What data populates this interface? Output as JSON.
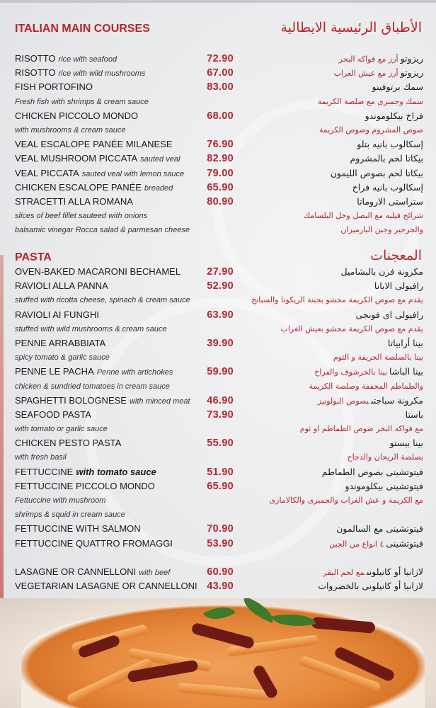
{
  "sections": [
    {
      "title": "ITALIAN MAIN COURSES",
      "title_ar": "الأطباق الرئيسية الايطالية",
      "rows": [
        {
          "en": "RISOTTO",
          "en_desc": "rice with seafood",
          "price": "72.90",
          "ar": "ريزوتو",
          "ar_desc": "أرز مع فواكه البحر"
        },
        {
          "en": "RISOTTO",
          "en_desc": "rice with wild mushrooms",
          "price": "67.00",
          "ar": "ريزوتو",
          "ar_desc": "أرز مع عيش الغراب"
        },
        {
          "en": "FISH PORTOFINO",
          "price": "83.00",
          "ar": "سمك برتوفينو"
        },
        {
          "desc": true,
          "en": "Fresh fish with shrimps & cream sauce",
          "ar": "سمك وجمبرى مع صلصة الكريمة"
        },
        {
          "en": "CHICKEN PICCOLO MONDO",
          "price": "68.00",
          "ar": "فراخ بيكلوموندو"
        },
        {
          "desc": true,
          "en": "with mushrooms & cream sauce",
          "ar": "صوص المشروم وصوص الكريمة"
        },
        {
          "en": "VEAL ESCALOPE PANÉE MILANESE",
          "price": "76.90",
          "ar": "إسكالوب بانيه بتلو"
        },
        {
          "en": "VEAL MUSHROOM PICCATA",
          "en_desc": "sauted veal",
          "price": "82.90",
          "ar": "بيكاتا لحم بالمشروم"
        },
        {
          "en": "VEAL PICCATA",
          "en_desc": "sauted veal with lemon sauce",
          "price": "79.00",
          "ar": "بيكاتا لحم بصوص الليمون"
        },
        {
          "en": "CHICKEN ESCALOPE PANÉE",
          "en_desc": "breaded",
          "price": "65.90",
          "ar": "إسكالوب بانيه فراخ"
        },
        {
          "en": "STRACETTI ALLA ROMANA",
          "price": "80.90",
          "ar": "ستراستى الاروماتا"
        },
        {
          "desc": true,
          "en": "slices of beef fillet sauteed with onions",
          "ar": "شرائح فيليه مع البصل وخل البلسامك"
        },
        {
          "desc": true,
          "en": "balsamic vinegar Rocca salad & parmesan cheese",
          "ar": "والجرجير وجبن البارميزان"
        }
      ]
    },
    {
      "title": "PASTA",
      "title_ar": "المعجنات",
      "rows": [
        {
          "en": "OVEN-BAKED MACARONI BECHAMEL",
          "price": "27.90",
          "ar": "مكرونة فرن بالبشاميل"
        },
        {
          "en": "RAVIOLI ALLA PANNA",
          "price": "52.90",
          "ar": "رافيولى الابانا"
        },
        {
          "desc": true,
          "en": "stuffed with ricotta cheese, spinach & cream sauce",
          "ar": "يقدم مع صوص الكريمة محشو بجبنة الريكوتا والسبانخ"
        },
        {
          "en": "RAVIOLI AI FUNGHI",
          "price": "63.90",
          "ar": "رافيولى اى فونجى"
        },
        {
          "desc": true,
          "en": "stuffed with wild mushrooms & cream sauce",
          "ar": "يقدم مع صوص الكريمة محشو بعيش الغراب"
        },
        {
          "en": "PENNE ARRABBIATA",
          "price": "39.90",
          "ar": "بينا أرابياتا"
        },
        {
          "desc": true,
          "en": "spicy tomato & garlic sauce",
          "ar": "بينا بالصلصة الحريفة و الثوم"
        },
        {
          "en": "PENNE LE PACHA",
          "en_desc": "Penne with artichokes",
          "price": "59.90",
          "ar": "بينا الباشا",
          "ar_desc": "بينا بالخرشوف والفراخ"
        },
        {
          "desc": true,
          "en": "chicken & sundried tomatoes in cream sauce",
          "ar": "والطماطم المجففة وصلصة الكريمة"
        },
        {
          "en": "SPAGHETTI BOLOGNESE",
          "en_desc": "with minced meat",
          "price": "46.90",
          "ar": "مكرونة سباجتى",
          "ar_desc": "بصوص البولونيز"
        },
        {
          "en": "SEAFOOD PASTA",
          "price": "73.90",
          "ar": "باستا"
        },
        {
          "desc": true,
          "en": "with tomato or garlic sauce",
          "ar": "مع فواكه البحر  صوص الطماطم او ثوم"
        },
        {
          "en": "CHICKEN PESTO PASTA",
          "price": "55.90",
          "ar": "بينا بيستو"
        },
        {
          "desc": true,
          "en": "with fresh basil",
          "ar": "بصلصة الريحان والدجاج"
        },
        {
          "en": "FETTUCCINE",
          "en_desc": "with tomato sauce",
          "en_desc_strong": true,
          "price": "51.90",
          "ar": "فيتوتشينى بصوص الطماطم"
        },
        {
          "en": "FETTUCCINE PICCOLO MONDO",
          "price": "65.90",
          "ar": "فيتوتشينى بيكلوموندو"
        },
        {
          "desc": true,
          "en": "Fettuccine with mushroom",
          "ar": "مع الكريمة و عش الغراب والجمبرى والكالامارى"
        },
        {
          "desc": true,
          "en": " shrimps & squid in cream sauce",
          "ar": ""
        },
        {
          "en": "FETTUCCINE WITH SALMON",
          "price": "70.90",
          "ar": "فيتوتشينى مع السالمون"
        },
        {
          "en": "FETTUCCINE QUATTRO FROMAGGI",
          "price": "53.90",
          "ar": "فيتوتشينى",
          "ar_desc": "٤ انواع من الجبن"
        },
        {
          "spacer": true
        },
        {
          "en": "LASAGNE OR CANNELLONI",
          "en_desc": "with beef",
          "price": "60.90",
          "ar": "لازانيا  أو كانيلونى",
          "ar_desc": "مع لحم البقر"
        },
        {
          "en": "VEGETARIAN LASAGNE OR CANNELLONI",
          "price": "43.90",
          "ar": "لازانيا أو كانيلونى بالخضروات"
        }
      ]
    }
  ],
  "colors": {
    "accent": "#b3262f",
    "text": "#1a1a1a",
    "background": "#e9eaec"
  },
  "photo": {
    "subject": "penne pasta with sundried tomatoes and basil"
  }
}
